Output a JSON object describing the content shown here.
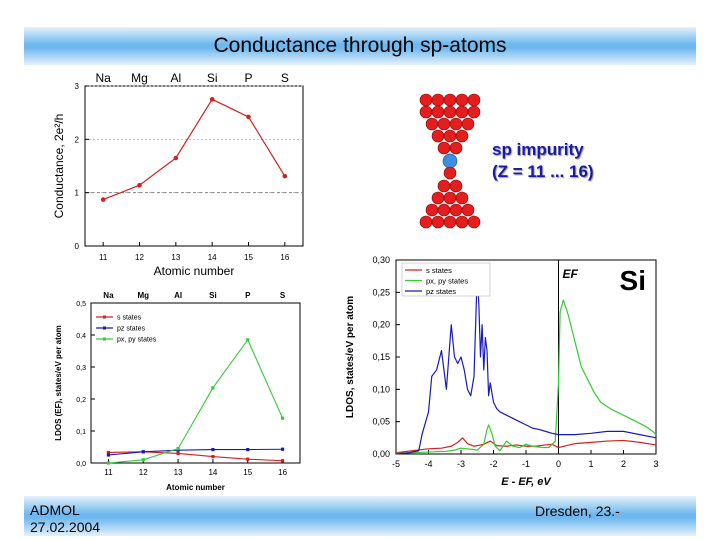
{
  "slide": {
    "title": "Conductance through sp-atoms",
    "footer_left_1": "ADMOL",
    "footer_left_2": "27.02.2004",
    "footer_right": "Dresden, 23.-"
  },
  "illustration": {
    "label_line1": "sp impurity",
    "label_line2": "(Z = 11 ... 16)"
  },
  "chart_data": [
    {
      "type": "line",
      "xlabel": "Atomic number",
      "ylabel": "Conductance, 2e²/h",
      "x": [
        11,
        12,
        13,
        14,
        15,
        16
      ],
      "x_ticks": [
        "11",
        "12",
        "13",
        "14",
        "15",
        "16"
      ],
      "element_labels": [
        "Na",
        "Mg",
        "Al",
        "Si",
        "P",
        "S"
      ],
      "xlim": [
        10.5,
        16.5
      ],
      "ylim": [
        0,
        3
      ],
      "y_ticks": [
        "0",
        "1",
        "2",
        "3"
      ],
      "grid": "dotted horizontal",
      "series": [
        {
          "values": [
            0.87,
            1.14,
            1.65,
            2.75,
            2.42,
            1.31
          ],
          "color": "#d42020"
        }
      ]
    },
    {
      "type": "line",
      "xlabel": "Atomic number",
      "ylabel": "LDOS (EF), states/eV per atom",
      "x": [
        11,
        12,
        13,
        14,
        15,
        16
      ],
      "x_ticks": [
        "11",
        "12",
        "13",
        "14",
        "15",
        "16"
      ],
      "element_labels": [
        "Na",
        "Mg",
        "Al",
        "Si",
        "P",
        "S"
      ],
      "xlim": [
        10.5,
        16.5
      ],
      "ylim": [
        0,
        0.5
      ],
      "y_ticks": [
        "0,0",
        "0,1",
        "0,2",
        "0,3",
        "0,4",
        "0,5"
      ],
      "legend": "top-left",
      "series": [
        {
          "name": "s states",
          "values": [
            0.033,
            0.035,
            0.03,
            0.02,
            0.012,
            0.007
          ],
          "color": "#d42020"
        },
        {
          "name": "pz states",
          "values": [
            0.025,
            0.035,
            0.04,
            0.042,
            0.042,
            0.043
          ],
          "color": "#1a1ab8"
        },
        {
          "name": "px, py states",
          "values": [
            0.0,
            0.01,
            0.045,
            0.235,
            0.385,
            0.14
          ],
          "color": "#33cc33"
        }
      ]
    },
    {
      "type": "line",
      "title": "Si",
      "xlabel": "E - EF, eV",
      "ylabel": "LDOS, states/eV per atom",
      "xlim": [
        -5,
        3
      ],
      "ylim": [
        0,
        0.3
      ],
      "x_ticks": [
        "-5",
        "-4",
        "-3",
        "-2",
        "-1",
        "0",
        "1",
        "2",
        "3"
      ],
      "y_ticks": [
        "0,00",
        "0,05",
        "0,10",
        "0,15",
        "0,20",
        "0,25",
        "0,30"
      ],
      "annotation": "EF",
      "fermi_level": 0,
      "legend": "top-left",
      "series": [
        {
          "name": "s states",
          "color": "#d42020",
          "x": [
            -5,
            -4.5,
            -4,
            -3.6,
            -3.3,
            -3.1,
            -2.95,
            -2.8,
            -2.6,
            -2.3,
            -2.1,
            -1.9,
            -1.6,
            -1.3,
            -1,
            -0.7,
            -0.4,
            -0.2,
            0,
            0.5,
            1,
            1.5,
            2,
            2.5,
            3
          ],
          "y": [
            0.002,
            0.005,
            0.008,
            0.009,
            0.012,
            0.018,
            0.025,
            0.016,
            0.012,
            0.015,
            0.02,
            0.013,
            0.012,
            0.014,
            0.012,
            0.012,
            0.014,
            0.015,
            0.01,
            0.016,
            0.018,
            0.02,
            0.021,
            0.018,
            0.014
          ]
        },
        {
          "name": "px, py states",
          "color": "#33cc33",
          "x": [
            -5,
            -4.5,
            -4,
            -3.5,
            -3.2,
            -3.0,
            -2.8,
            -2.5,
            -2.3,
            -2.2,
            -2.15,
            -2.05,
            -1.95,
            -1.8,
            -1.6,
            -1.4,
            -1.2,
            -1,
            -0.8,
            -0.5,
            -0.3,
            -0.1,
            0,
            0.05,
            0.15,
            0.3,
            0.5,
            0.7,
            0.9,
            1.1,
            1.3,
            1.6,
            2.0,
            2.4,
            2.7,
            2.9,
            3.0
          ],
          "y": [
            0.001,
            0.002,
            0.003,
            0.004,
            0.006,
            0.009,
            0.008,
            0.006,
            0.015,
            0.038,
            0.045,
            0.032,
            0.012,
            0.005,
            0.02,
            0.012,
            0.01,
            0.015,
            0.012,
            0.01,
            0.01,
            0.02,
            0.11,
            0.22,
            0.238,
            0.215,
            0.175,
            0.135,
            0.115,
            0.095,
            0.08,
            0.07,
            0.06,
            0.05,
            0.042,
            0.035,
            0.03
          ]
        },
        {
          "name": "pz states",
          "color": "#1a1ab8",
          "x": [
            -5,
            -4.6,
            -4.3,
            -4.2,
            -4.0,
            -3.9,
            -3.75,
            -3.6,
            -3.45,
            -3.3,
            -3.2,
            -3.1,
            -3.0,
            -2.9,
            -2.8,
            -2.7,
            -2.6,
            -2.5,
            -2.45,
            -2.4,
            -2.35,
            -2.3,
            -2.25,
            -2.2,
            -2.15,
            -2.1,
            -2.0,
            -1.9,
            -1.8,
            -1.6,
            -1.4,
            -1.2,
            -1.0,
            -0.8,
            -0.6,
            -0.4,
            -0.2,
            0,
            0.5,
            1,
            1.5,
            2,
            2.5,
            3
          ],
          "y": [
            0.0,
            0.002,
            0.005,
            0.03,
            0.065,
            0.12,
            0.13,
            0.16,
            0.1,
            0.2,
            0.15,
            0.14,
            0.15,
            0.13,
            0.1,
            0.09,
            0.12,
            0.28,
            0.23,
            0.15,
            0.2,
            0.13,
            0.18,
            0.16,
            0.09,
            0.11,
            0.08,
            0.07,
            0.065,
            0.06,
            0.055,
            0.05,
            0.045,
            0.04,
            0.038,
            0.035,
            0.032,
            0.03,
            0.03,
            0.032,
            0.035,
            0.035,
            0.03,
            0.025
          ]
        }
      ]
    }
  ]
}
